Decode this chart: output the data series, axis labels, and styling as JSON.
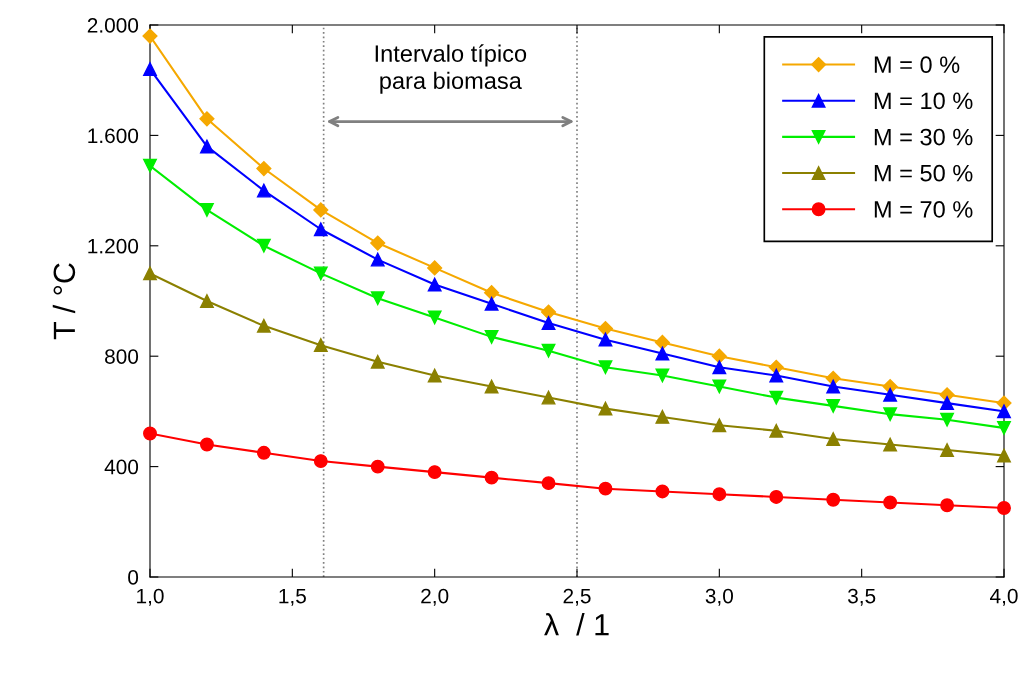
{
  "chart_data": {
    "type": "line",
    "xlabel": "λ  / 1",
    "ylabel": "T / °C",
    "x": [
      1.0,
      1.2,
      1.4,
      1.6,
      1.8,
      2.0,
      2.2,
      2.4,
      2.6,
      2.8,
      3.0,
      3.2,
      3.4,
      3.6,
      3.8,
      4.0
    ],
    "series": [
      {
        "name": "M = 0 %",
        "color": "#f5a800",
        "marker": "diamond",
        "values": [
          1960,
          1660,
          1480,
          1330,
          1210,
          1120,
          1030,
          960,
          900,
          850,
          800,
          760,
          720,
          690,
          660,
          630
        ]
      },
      {
        "name": "M = 10 %",
        "color": "#0000ff",
        "marker": "triangle",
        "values": [
          1840,
          1560,
          1400,
          1260,
          1150,
          1060,
          990,
          920,
          860,
          810,
          760,
          730,
          690,
          660,
          630,
          600
        ]
      },
      {
        "name": "M = 30 %",
        "color": "#00ee00",
        "marker": "triangle_down",
        "values": [
          1490,
          1330,
          1200,
          1100,
          1010,
          940,
          870,
          820,
          760,
          730,
          690,
          650,
          620,
          590,
          570,
          540
        ]
      },
      {
        "name": "M = 50 %",
        "color": "#8b8000",
        "marker": "triangle",
        "values": [
          1100,
          1000,
          910,
          840,
          780,
          730,
          690,
          650,
          610,
          580,
          550,
          530,
          500,
          480,
          460,
          440
        ]
      },
      {
        "name": "M = 70 %",
        "color": "#ff0000",
        "marker": "circle",
        "values": [
          520,
          480,
          450,
          420,
          400,
          380,
          360,
          340,
          320,
          310,
          300,
          290,
          280,
          270,
          260,
          250
        ]
      }
    ],
    "xlim": [
      1.0,
      4.0
    ],
    "xticks": [
      {
        "value": 1.0,
        "label": "1,0"
      },
      {
        "value": 1.5,
        "label": "1,5"
      },
      {
        "value": 2.0,
        "label": "2,0"
      },
      {
        "value": 2.5,
        "label": "2,5"
      },
      {
        "value": 3.0,
        "label": "3,0"
      },
      {
        "value": 3.5,
        "label": "3,5"
      },
      {
        "value": 4.0,
        "label": "4,0"
      }
    ],
    "ylim": [
      0,
      2000
    ],
    "yticks": [
      0,
      400,
      800,
      {
        "value": 1200,
        "label": "1.200"
      },
      {
        "value": 1600,
        "label": "1.600"
      },
      {
        "value": 2000,
        "label": "2.000"
      }
    ],
    "ref_lines": [
      {
        "axis": "x",
        "value": 1.61,
        "color": "#808080",
        "line_style": "dotted"
      },
      {
        "axis": "x",
        "value": 2.5,
        "color": "#808080",
        "line_style": "dotted"
      }
    ],
    "annotations": [
      "Intervalo típico\npara biomasa"
    ],
    "legend": "top right",
    "grid": false,
    "line_style": "solid"
  }
}
